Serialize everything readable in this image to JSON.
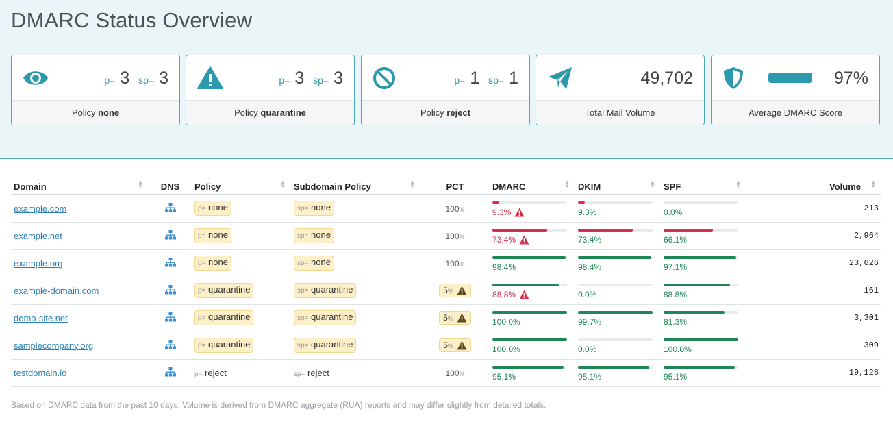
{
  "page": {
    "title": "DMARC Status Overview"
  },
  "cards": [
    {
      "label_prefix": "Policy ",
      "label_bold": "none",
      "p_label": "p=",
      "p_value": "3",
      "sp_label": "sp=",
      "sp_value": "3",
      "icon": "eye-icon"
    },
    {
      "label_prefix": "Policy ",
      "label_bold": "quarantine",
      "p_label": "p=",
      "p_value": "3",
      "sp_label": "sp=",
      "sp_value": "3",
      "icon": "warning-icon"
    },
    {
      "label_prefix": "Policy ",
      "label_bold": "reject",
      "p_label": "p=",
      "p_value": "1",
      "sp_label": "sp=",
      "sp_value": "1",
      "icon": "ban-icon"
    },
    {
      "label": "Total Mail Volume",
      "value": "49,702",
      "icon": "paper-plane-icon"
    },
    {
      "label": "Average DMARC Score",
      "value": "97%",
      "score": 0.97,
      "icon": "shield-icon"
    }
  ],
  "table": {
    "headers": {
      "domain": "Domain",
      "dns": "DNS",
      "policy": "Policy",
      "subdomain_policy": "Subdomain Policy",
      "pct": "PCT",
      "dmarc": "DMARC",
      "dkim": "DKIM",
      "spf": "SPF",
      "volume": "Volume"
    },
    "rows": [
      {
        "domain": "example.com",
        "policy_label": "p=",
        "policy": "none",
        "sp_label": "sp=",
        "subdomain_policy": "none",
        "pct": "100",
        "pct_unit": "%",
        "pct_warn": false,
        "dmarc": "9.3%",
        "dmarc_value": 9.3,
        "dmarc_warn": true,
        "dkim": "9.3%",
        "dkim_value": 9.3,
        "spf": "0.0%",
        "spf_value": 0.0,
        "volume": "213"
      },
      {
        "domain": "example.net",
        "policy_label": "p=",
        "policy": "none",
        "sp_label": "sp=",
        "subdomain_policy": "none",
        "pct": "100",
        "pct_unit": "%",
        "pct_warn": false,
        "dmarc": "73.4%",
        "dmarc_value": 73.4,
        "dmarc_warn": true,
        "dkim": "73.4%",
        "dkim_value": 73.4,
        "spf": "66.1%",
        "spf_value": 66.1,
        "volume": "2,964"
      },
      {
        "domain": "example.org",
        "policy_label": "p=",
        "policy": "none",
        "sp_label": "sp=",
        "subdomain_policy": "none",
        "pct": "100",
        "pct_unit": "%",
        "pct_warn": false,
        "dmarc": "98.4%",
        "dmarc_value": 98.4,
        "dmarc_warn": false,
        "dkim": "98.4%",
        "dkim_value": 98.4,
        "spf": "97.1%",
        "spf_value": 97.1,
        "volume": "23,626"
      },
      {
        "domain": "example-domain.com",
        "policy_label": "p=",
        "policy": "quarantine",
        "sp_label": "sp=",
        "subdomain_policy": "quarantine",
        "pct": "5",
        "pct_unit": "%",
        "pct_warn": true,
        "dmarc": "88.8%",
        "dmarc_value": 88.8,
        "dmarc_warn": true,
        "dkim": "0.0%",
        "dkim_value": 0.0,
        "spf": "88.8%",
        "spf_value": 88.8,
        "volume": "161"
      },
      {
        "domain": "demo-site.net",
        "policy_label": "p=",
        "policy": "quarantine",
        "sp_label": "sp=",
        "subdomain_policy": "quarantine",
        "pct": "5",
        "pct_unit": "%",
        "pct_warn": true,
        "dmarc": "100.0%",
        "dmarc_value": 100.0,
        "dmarc_warn": false,
        "dkim": "99.7%",
        "dkim_value": 99.7,
        "spf": "81.3%",
        "spf_value": 81.3,
        "volume": "3,301"
      },
      {
        "domain": "samplecompany.org",
        "policy_label": "p=",
        "policy": "quarantine",
        "sp_label": "sp=",
        "subdomain_policy": "quarantine",
        "pct": "5",
        "pct_unit": "%",
        "pct_warn": true,
        "dmarc": "100.0%",
        "dmarc_value": 100.0,
        "dmarc_warn": false,
        "dkim": "0.0%",
        "dkim_value": 0.0,
        "spf": "100.0%",
        "spf_value": 100.0,
        "volume": "309"
      },
      {
        "domain": "testdomain.io",
        "policy_label": "p=",
        "policy": "reject",
        "sp_label": "sp=",
        "subdomain_policy": "reject",
        "pct": "100",
        "pct_unit": "%",
        "pct_warn": false,
        "dmarc": "95.1%",
        "dmarc_value": 95.1,
        "dmarc_warn": false,
        "dkim": "95.1%",
        "dkim_value": 95.1,
        "spf": "95.1%",
        "spf_value": 95.1,
        "volume": "19,128"
      }
    ]
  },
  "footnote": "Based on DMARC data from the past 10 days. Volume is derived from DMARC aggregate (RUA) reports and may differ slightly from detailed totals.",
  "colors": {
    "accent": "#2a9aac",
    "good": "#1f8754",
    "bad": "#d2314c",
    "link": "#2a7fb8",
    "pill": "#fdf0c8"
  }
}
